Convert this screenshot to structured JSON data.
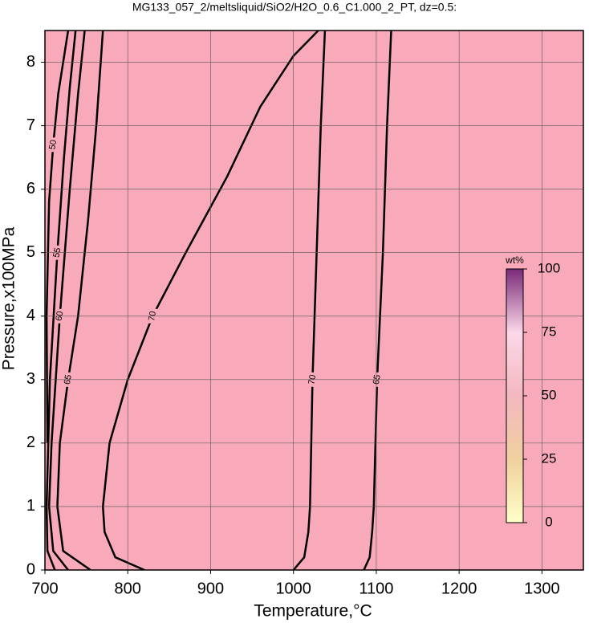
{
  "chart_data": {
    "type": "contour",
    "title": "MG133_057_2/meltsliquid/SiO2/H2O_0.6_C1.000_2_PT, dz=0.5:",
    "x_label": "Temperature,°C",
    "y_label": "Pressure,x100MPa",
    "xlim": [
      700,
      1350
    ],
    "xticks": [
      700,
      800,
      900,
      1000,
      1100,
      1200,
      1300
    ],
    "ylim": [
      0,
      8.5
    ],
    "yticks": [
      0,
      1,
      2,
      3,
      4,
      5,
      6,
      7,
      8
    ],
    "grid": true,
    "background": "#f8aabb",
    "contours": [
      {
        "level": 70,
        "x": [
          820,
          785,
          772,
          770,
          778,
          800,
          830,
          870,
          920,
          960,
          1000,
          1030
        ],
        "y": [
          0,
          0.2,
          0.6,
          1,
          2,
          3,
          4,
          5,
          6.2,
          7.3,
          8.1,
          8.5
        ]
      },
      {
        "level": 70,
        "x": [
          1000,
          1013,
          1018,
          1020,
          1023,
          1028,
          1033,
          1038
        ],
        "y": [
          0,
          0.2,
          0.6,
          1,
          3,
          5,
          7,
          8.5
        ]
      },
      {
        "level": 65,
        "x": [
          1085,
          1092,
          1095,
          1097,
          1101,
          1108,
          1113,
          1118
        ],
        "y": [
          0,
          0.2,
          0.6,
          1,
          3,
          5,
          7,
          8.5
        ]
      },
      {
        "level": 65,
        "x": [
          755,
          722,
          715,
          718,
          728,
          740,
          752,
          762,
          770
        ],
        "y": [
          0,
          0.3,
          1,
          2,
          3,
          4,
          5.5,
          7,
          8.5
        ]
      },
      {
        "level": 60,
        "x": [
          728,
          710,
          705,
          708,
          718,
          730,
          740,
          748
        ],
        "y": [
          0,
          0.3,
          1,
          2,
          4,
          6,
          7.5,
          8.5
        ]
      },
      {
        "level": 55,
        "x": [
          712,
          703,
          702,
          706,
          715,
          723,
          730,
          737
        ],
        "y": [
          0,
          0.3,
          1,
          3,
          5,
          6.5,
          7.6,
          8.5
        ]
      },
      {
        "level": 50,
        "x": [
          703,
          702,
          705,
          710,
          716,
          722,
          728
        ],
        "y": [
          2,
          4,
          5.8,
          6.7,
          7.5,
          8,
          8.5
        ]
      }
    ],
    "colorbar": {
      "label": "wt%",
      "lim": [
        0,
        100
      ],
      "ticks": [
        0,
        25,
        50,
        75,
        100
      ]
    }
  }
}
